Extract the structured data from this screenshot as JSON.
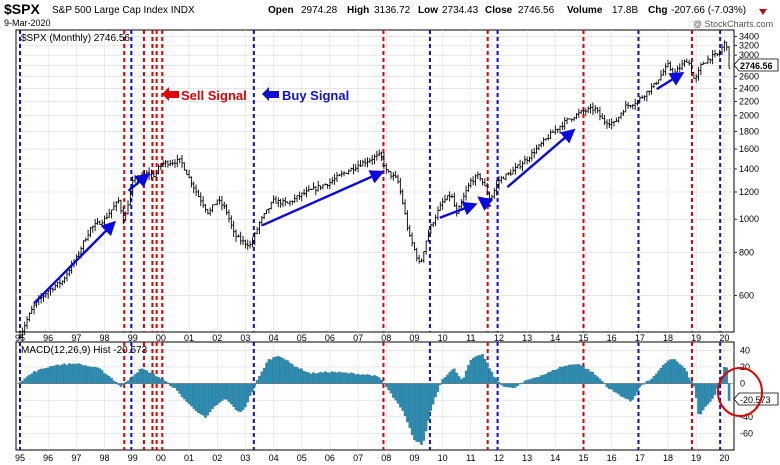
{
  "header": {
    "symbol": "$SPX",
    "name": "S&P 500 Large Cap Index INDX",
    "date": "9-Mar-2020",
    "open_label": "Open",
    "open": "2974.28",
    "high_label": "High",
    "high": "3136.72",
    "low_label": "Low",
    "low": "2734.43",
    "close_label": "Close",
    "close": "2746.56",
    "volume_label": "Volume",
    "volume": "17.8B",
    "chg_label": "Chg",
    "chg": "-207.66 (-7.03%)",
    "watermark": "@ StockCharts.com"
  },
  "price_panel": {
    "legend": "$SPX (Monthly) 2746.56",
    "last_value_tag": "2746.56"
  },
  "macd_panel": {
    "legend": "MACD(12,26,9) Hist -20.573",
    "last_value_tag": "-20.573"
  },
  "annotations": {
    "sell_label": "Sell Signal",
    "buy_label": "Buy Signal"
  },
  "colors": {
    "bars": "#000000",
    "hist_fill": "#2e8fb5",
    "hist_stroke": "#1b5d7a",
    "sell": "#e00000",
    "buy": "#1010d0",
    "arrow": "#0a0ae0",
    "grid": "#d8d8d8",
    "circle": "#dd0000"
  },
  "chart_data": [
    {
      "type": "ohlc-bar",
      "title": "$SPX (Monthly)",
      "x_start": 1995.0,
      "x_end": 2020.2,
      "x_ticks": [
        "95",
        "96",
        "97",
        "98",
        "99",
        "00",
        "01",
        "02",
        "03",
        "04",
        "05",
        "06",
        "07",
        "08",
        "09",
        "10",
        "11",
        "12",
        "13",
        "14",
        "15",
        "16",
        "17",
        "18",
        "19",
        "20"
      ],
      "y_scale": "log",
      "ylim": [
        470,
        3550
      ],
      "y_ticks": [
        600,
        800,
        1000,
        1200,
        1400,
        1600,
        1800,
        2000,
        2200,
        2400,
        2600,
        2800,
        3000,
        3200,
        3400
      ],
      "anchors": [
        [
          1995.0,
          460
        ],
        [
          1995.5,
          560
        ],
        [
          1996.0,
          620
        ],
        [
          1996.5,
          660
        ],
        [
          1997.0,
          770
        ],
        [
          1997.5,
          940
        ],
        [
          1998.0,
          1000
        ],
        [
          1998.5,
          1130
        ],
        [
          1998.7,
          980
        ],
        [
          1999.0,
          1280
        ],
        [
          1999.5,
          1360
        ],
        [
          1999.8,
          1340
        ],
        [
          2000.0,
          1450
        ],
        [
          2000.7,
          1480
        ],
        [
          2001.0,
          1320
        ],
        [
          2001.3,
          1180
        ],
        [
          2001.7,
          1040
        ],
        [
          2002.0,
          1140
        ],
        [
          2002.3,
          1070
        ],
        [
          2002.6,
          900
        ],
        [
          2002.9,
          860
        ],
        [
          2003.2,
          840
        ],
        [
          2003.5,
          975
        ],
        [
          2004.0,
          1130
        ],
        [
          2004.5,
          1110
        ],
        [
          2005.0,
          1180
        ],
        [
          2006.0,
          1280
        ],
        [
          2007.0,
          1440
        ],
        [
          2007.8,
          1540
        ],
        [
          2008.0,
          1380
        ],
        [
          2008.4,
          1300
        ],
        [
          2008.8,
          900
        ],
        [
          2009.2,
          730
        ],
        [
          2009.5,
          920
        ],
        [
          2010.0,
          1120
        ],
        [
          2010.3,
          1180
        ],
        [
          2010.5,
          1030
        ],
        [
          2011.0,
          1290
        ],
        [
          2011.3,
          1340
        ],
        [
          2011.7,
          1140
        ],
        [
          2012.0,
          1300
        ],
        [
          2012.5,
          1380
        ],
        [
          2013.0,
          1500
        ],
        [
          2013.5,
          1650
        ],
        [
          2014.0,
          1820
        ],
        [
          2014.5,
          1960
        ],
        [
          2015.0,
          2060
        ],
        [
          2015.4,
          2100
        ],
        [
          2015.7,
          1930
        ],
        [
          2016.1,
          1900
        ],
        [
          2016.5,
          2130
        ],
        [
          2016.9,
          2200
        ],
        [
          2017.5,
          2450
        ],
        [
          2018.0,
          2800
        ],
        [
          2018.2,
          2640
        ],
        [
          2018.7,
          2920
        ],
        [
          2018.95,
          2510
        ],
        [
          2019.2,
          2830
        ],
        [
          2019.5,
          2950
        ],
        [
          2019.8,
          3020
        ],
        [
          2020.0,
          3250
        ],
        [
          2020.08,
          3230
        ],
        [
          2020.17,
          2746
        ]
      ],
      "last_close": 2746.56,
      "buy_arrows": [
        {
          "from": [
            1995.5,
            570
          ],
          "to": [
            1998.3,
            970
          ]
        },
        {
          "from": [
            1998.85,
            1210
          ],
          "to": [
            1999.5,
            1340
          ]
        },
        {
          "from": [
            2003.6,
            960
          ],
          "to": [
            2007.8,
            1365
          ]
        },
        {
          "from": [
            2009.9,
            1010
          ],
          "to": [
            2011.1,
            1100
          ]
        },
        {
          "from": [
            2011.7,
            1090
          ],
          "to": [
            2011.35,
            1145
          ]
        },
        {
          "from": [
            2012.3,
            1240
          ],
          "to": [
            2014.6,
            1800
          ]
        },
        {
          "from": [
            2017.6,
            2390
          ],
          "to": [
            2018.45,
            2640
          ]
        }
      ]
    },
    {
      "type": "histogram",
      "title": "MACD(12,26,9) Hist",
      "ylim": [
        -80,
        50
      ],
      "y_ticks": [
        40,
        20,
        0,
        -20,
        -40,
        -60
      ],
      "anchors": [
        [
          1995.0,
          2
        ],
        [
          1995.5,
          14
        ],
        [
          1996.2,
          22
        ],
        [
          1997.0,
          24
        ],
        [
          1997.8,
          18
        ],
        [
          1998.2,
          8
        ],
        [
          1998.6,
          -4
        ],
        [
          1998.9,
          6
        ],
        [
          1999.3,
          18
        ],
        [
          1999.7,
          12
        ],
        [
          2000.1,
          4
        ],
        [
          2000.5,
          -6
        ],
        [
          2001.0,
          -25
        ],
        [
          2001.6,
          -42
        ],
        [
          2001.9,
          -28
        ],
        [
          2002.3,
          -18
        ],
        [
          2002.8,
          -36
        ],
        [
          2003.0,
          -28
        ],
        [
          2003.4,
          2
        ],
        [
          2003.8,
          28
        ],
        [
          2004.2,
          34
        ],
        [
          2004.7,
          22
        ],
        [
          2005.3,
          12
        ],
        [
          2006.0,
          14
        ],
        [
          2006.8,
          12
        ],
        [
          2007.5,
          10
        ],
        [
          2007.8,
          6
        ],
        [
          2008.2,
          -14
        ],
        [
          2008.6,
          -34
        ],
        [
          2009.0,
          -68
        ],
        [
          2009.3,
          -74
        ],
        [
          2009.6,
          -30
        ],
        [
          2010.0,
          6
        ],
        [
          2010.4,
          18
        ],
        [
          2010.7,
          4
        ],
        [
          2011.0,
          28
        ],
        [
          2011.4,
          36
        ],
        [
          2011.8,
          10
        ],
        [
          2012.1,
          -2
        ],
        [
          2012.5,
          -6
        ],
        [
          2013.0,
          4
        ],
        [
          2013.7,
          12
        ],
        [
          2014.2,
          20
        ],
        [
          2014.8,
          24
        ],
        [
          2015.3,
          14
        ],
        [
          2015.7,
          2
        ],
        [
          2015.9,
          -6
        ],
        [
          2016.3,
          -14
        ],
        [
          2016.7,
          -22
        ],
        [
          2017.0,
          -4
        ],
        [
          2017.5,
          8
        ],
        [
          2018.0,
          28
        ],
        [
          2018.2,
          30
        ],
        [
          2018.6,
          18
        ],
        [
          2018.95,
          -6
        ],
        [
          2019.1,
          -40
        ],
        [
          2019.3,
          -30
        ],
        [
          2019.6,
          -18
        ],
        [
          2019.9,
          6
        ],
        [
          2020.05,
          26
        ],
        [
          2020.12,
          10
        ],
        [
          2020.17,
          -20.573
        ]
      ]
    }
  ],
  "signal_lines": {
    "sell": [
      1998.7,
      1999.4,
      1999.7,
      1999.85,
      2000.05,
      2007.9,
      2011.6,
      2015.0,
      2018.85
    ],
    "buy": [
      1995.0,
      1998.95,
      2003.3,
      2009.55,
      2011.95,
      2016.95,
      2019.85
    ]
  }
}
